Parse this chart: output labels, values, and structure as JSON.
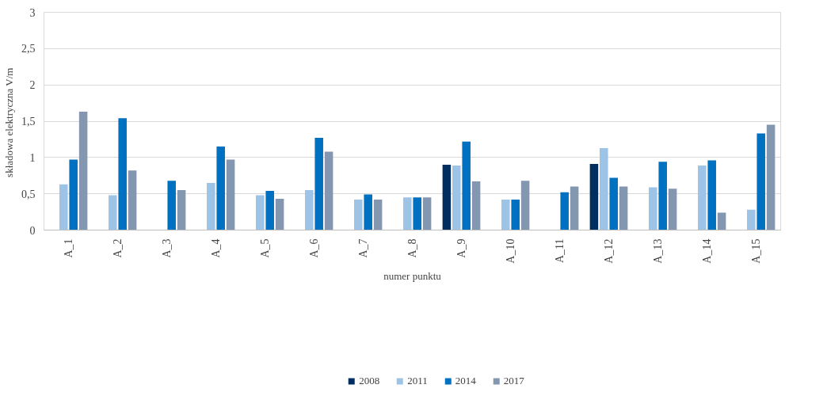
{
  "chart_data": {
    "type": "bar",
    "xlabel": "numer punktu",
    "ylabel": "składowa elektryczna  V/m",
    "categories": [
      "A_1",
      "A_2",
      "A_3",
      "A_4",
      "A_5",
      "A_6",
      "A_7",
      "A_8",
      "A_9",
      "A_10",
      "A_11",
      "A_12",
      "A_13",
      "A_14",
      "A_15"
    ],
    "series": [
      {
        "name": "2008",
        "color": "#002f5f",
        "values": [
          null,
          null,
          null,
          null,
          null,
          null,
          null,
          null,
          0.9,
          null,
          null,
          0.91,
          null,
          null,
          null
        ]
      },
      {
        "name": "2011",
        "color": "#9dc3e6",
        "values": [
          0.63,
          0.48,
          null,
          0.65,
          0.48,
          0.55,
          0.42,
          0.45,
          0.89,
          0.42,
          null,
          1.13,
          0.59,
          0.89,
          0.28
        ]
      },
      {
        "name": "2014",
        "color": "#0070c0",
        "values": [
          0.97,
          1.54,
          0.68,
          1.15,
          0.54,
          1.27,
          0.49,
          0.45,
          1.22,
          0.42,
          0.52,
          0.72,
          0.94,
          0.96,
          1.33
        ]
      },
      {
        "name": "2017",
        "color": "#8497b0",
        "values": [
          1.63,
          0.82,
          0.55,
          0.97,
          0.43,
          1.08,
          0.42,
          0.45,
          0.67,
          0.68,
          0.6,
          0.6,
          0.57,
          0.24,
          1.45
        ]
      }
    ],
    "ylim": [
      0,
      3
    ],
    "yticks": [
      0,
      {
        "value": 0.5,
        "label": "0,5"
      },
      1,
      {
        "value": 1.5,
        "label": "1,5"
      },
      2,
      {
        "value": 2.5,
        "label": "2,5"
      },
      3
    ],
    "grid": "y",
    "legend": "bottom"
  }
}
